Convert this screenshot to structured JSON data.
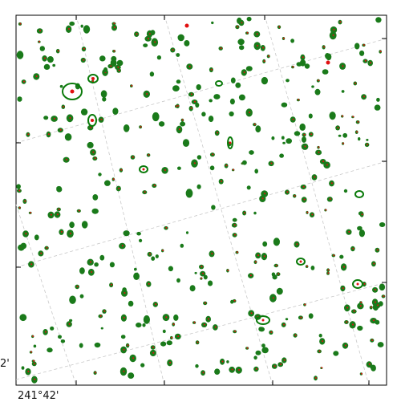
{
  "map": {
    "background": "#ffffff",
    "frame_color": "#000000",
    "grid_color": "#c8c8c8",
    "source_color": "#1a7a1a",
    "marker_color": "#e01010",
    "highlight_color": "#0a7a0a"
  },
  "axes": {
    "ra_label": "241°42'",
    "dec_label": "2'"
  }
}
